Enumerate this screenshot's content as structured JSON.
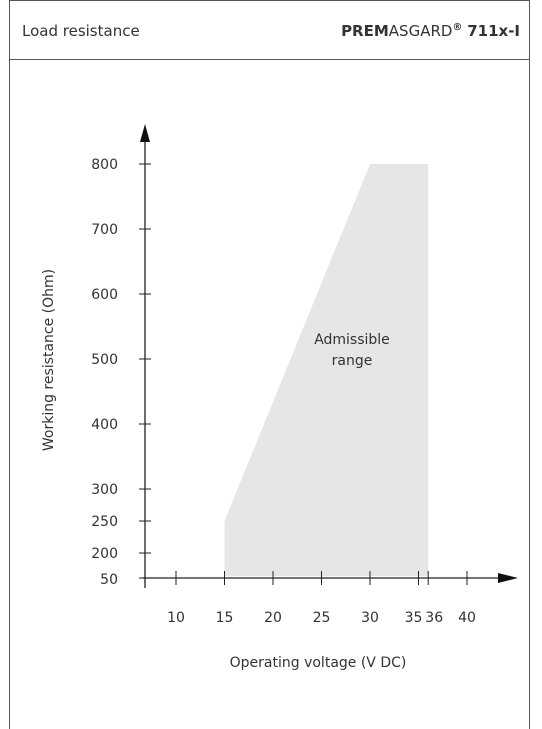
{
  "header": {
    "left_title": "Load resistance",
    "brand_bold": "PREM",
    "brand_regular": "ASGARD",
    "brand_reg_mark": "®",
    "model": "711x-I"
  },
  "chart_data": {
    "type": "area",
    "xlabel": "Operating voltage  (V DC)",
    "ylabel": "Working resistance  (Ohm)",
    "x_ticks": [
      "10",
      "15",
      "20",
      "25",
      "30",
      "35",
      "36",
      "40"
    ],
    "x_tick_values": [
      10,
      15,
      20,
      25,
      30,
      35,
      36,
      40
    ],
    "y_ticks": [
      "50",
      "200",
      "250",
      "300",
      "400",
      "500",
      "600",
      "700",
      "800"
    ],
    "y_tick_values": [
      50,
      200,
      250,
      300,
      400,
      500,
      600,
      700,
      800
    ],
    "region": {
      "name": "Admissible range",
      "label_lines": [
        "Admissible",
        "range"
      ],
      "polygon": [
        [
          15,
          50
        ],
        [
          15,
          250
        ],
        [
          30,
          800
        ],
        [
          36,
          800
        ],
        [
          36,
          50
        ]
      ],
      "color": "#e6e6e6"
    },
    "xlim": [
      5,
      42
    ],
    "ylim": [
      50,
      800
    ],
    "grid": false
  }
}
